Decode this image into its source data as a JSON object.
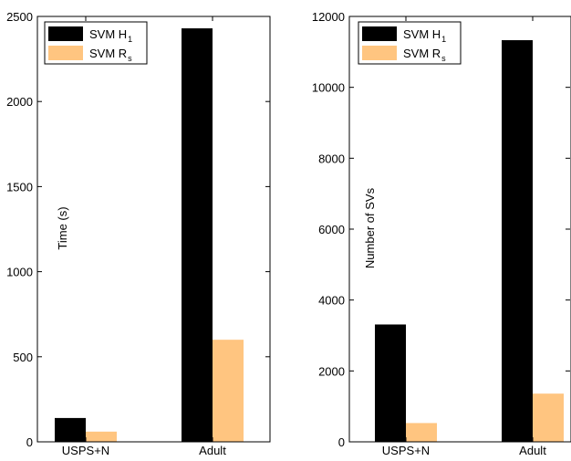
{
  "chart_data": [
    {
      "type": "bar",
      "categories": [
        "USPS+N",
        "Adult"
      ],
      "series": [
        {
          "name": "SVM H",
          "name_sub": "1",
          "color": "#000000",
          "values": [
            140,
            2430
          ]
        },
        {
          "name": "SVM R",
          "name_sub": "s",
          "color": "#ffc580",
          "values": [
            60,
            600
          ]
        }
      ],
      "ylabel": "Time (s)",
      "ylim": [
        0,
        2500
      ],
      "yticks": [
        "0",
        "500",
        "1000",
        "1500",
        "2000",
        "2500"
      ],
      "grid": false,
      "legend_position": "top-left"
    },
    {
      "type": "bar",
      "categories": [
        "USPS+N",
        "Adult"
      ],
      "series": [
        {
          "name": "SVM H",
          "name_sub": "1",
          "color": "#000000",
          "values": [
            3310,
            11330
          ]
        },
        {
          "name": "SVM R",
          "name_sub": "s",
          "color": "#ffc580",
          "values": [
            530,
            1360
          ]
        }
      ],
      "ylabel": "Number of SVs",
      "ylim": [
        0,
        12000
      ],
      "yticks": [
        "0",
        "2000",
        "4000",
        "6000",
        "8000",
        "10000",
        "12000"
      ],
      "grid": false,
      "legend_position": "top-left"
    }
  ]
}
